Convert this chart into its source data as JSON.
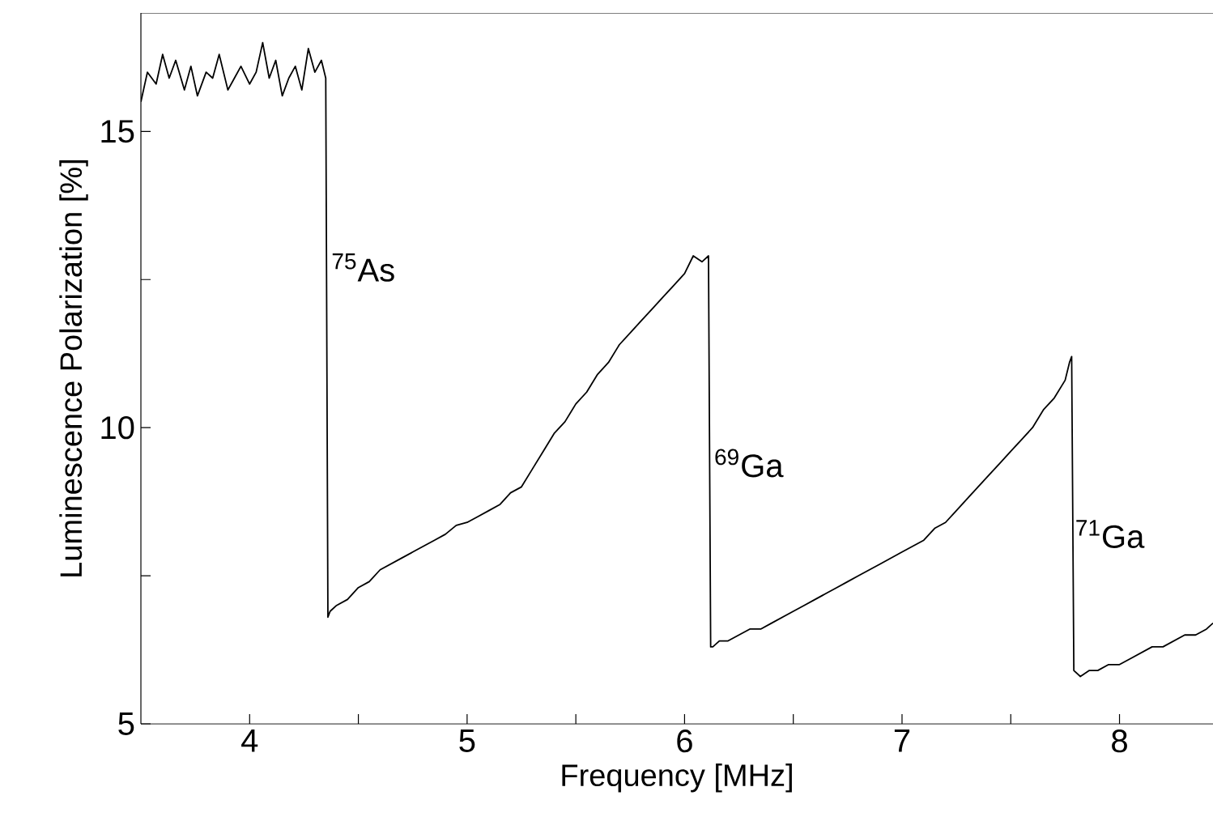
{
  "chart_data": {
    "type": "line",
    "xlabel": "Frequency [MHz]",
    "ylabel": "Luminescence Polarization [%]",
    "xlim": [
      3.5,
      8.43
    ],
    "ylim": [
      5,
      17
    ],
    "xticks": [
      4,
      {
        "value": 4.5,
        "label": null
      },
      5,
      {
        "value": 5.5,
        "label": null
      },
      6,
      {
        "value": 6.5,
        "label": null
      },
      7,
      {
        "value": 7.5,
        "label": null
      },
      8
    ],
    "yticks": [
      5,
      {
        "value": 7.5,
        "label": null
      },
      10,
      {
        "value": 12.5,
        "label": null
      },
      15
    ],
    "marker": "none",
    "line_style": "solid",
    "series": [
      {
        "color": "#000000",
        "x": [
          3.5,
          3.53,
          3.57,
          3.6,
          3.63,
          3.66,
          3.7,
          3.73,
          3.76,
          3.8,
          3.83,
          3.86,
          3.9,
          3.93,
          3.96,
          4.0,
          4.03,
          4.06,
          4.09,
          4.12,
          4.15,
          4.18,
          4.21,
          4.24,
          4.27,
          4.3,
          4.33,
          4.35,
          4.36,
          4.37,
          4.4,
          4.45,
          4.5,
          4.55,
          4.6,
          4.65,
          4.7,
          4.75,
          4.8,
          4.85,
          4.9,
          4.95,
          5.0,
          5.05,
          5.1,
          5.15,
          5.2,
          5.25,
          5.3,
          5.35,
          5.4,
          5.45,
          5.5,
          5.55,
          5.6,
          5.65,
          5.7,
          5.75,
          5.8,
          5.85,
          5.9,
          5.95,
          6.0,
          6.04,
          6.08,
          6.11,
          6.12,
          6.13,
          6.16,
          6.2,
          6.25,
          6.3,
          6.35,
          6.4,
          6.45,
          6.5,
          6.55,
          6.6,
          6.65,
          6.7,
          6.75,
          6.8,
          6.85,
          6.9,
          6.95,
          7.0,
          7.05,
          7.1,
          7.15,
          7.2,
          7.25,
          7.3,
          7.35,
          7.4,
          7.45,
          7.5,
          7.55,
          7.6,
          7.65,
          7.7,
          7.75,
          7.77,
          7.78,
          7.79,
          7.82,
          7.86,
          7.9,
          7.95,
          8.0,
          8.05,
          8.1,
          8.15,
          8.2,
          8.25,
          8.3,
          8.35,
          8.4,
          8.43
        ],
        "values": [
          15.5,
          16.0,
          15.8,
          16.3,
          15.9,
          16.2,
          15.7,
          16.1,
          15.6,
          16.0,
          15.9,
          16.3,
          15.7,
          15.9,
          16.1,
          15.8,
          16.0,
          16.5,
          15.9,
          16.2,
          15.6,
          15.9,
          16.1,
          15.7,
          16.4,
          16.0,
          16.2,
          15.9,
          6.8,
          6.9,
          7.0,
          7.1,
          7.3,
          7.4,
          7.6,
          7.7,
          7.8,
          7.9,
          8.0,
          8.1,
          8.2,
          8.35,
          8.4,
          8.5,
          8.6,
          8.7,
          8.9,
          9.0,
          9.3,
          9.6,
          9.9,
          10.1,
          10.4,
          10.6,
          10.9,
          11.1,
          11.4,
          11.6,
          11.8,
          12.0,
          12.2,
          12.4,
          12.6,
          12.9,
          12.8,
          12.9,
          6.3,
          6.3,
          6.4,
          6.4,
          6.5,
          6.6,
          6.6,
          6.7,
          6.8,
          6.9,
          7.0,
          7.1,
          7.2,
          7.3,
          7.4,
          7.5,
          7.6,
          7.7,
          7.8,
          7.9,
          8.0,
          8.1,
          8.3,
          8.4,
          8.6,
          8.8,
          9.0,
          9.2,
          9.4,
          9.6,
          9.8,
          10.0,
          10.3,
          10.5,
          10.8,
          11.1,
          11.2,
          5.9,
          5.8,
          5.9,
          5.9,
          6.0,
          6.0,
          6.1,
          6.2,
          6.3,
          6.3,
          6.4,
          6.5,
          6.5,
          6.6,
          6.7
        ]
      }
    ],
    "annotations": [
      {
        "text": "$^{75}$As",
        "x": 4.36,
        "y": 13.0
      },
      {
        "text": "$^{69}$Ga",
        "x": 6.12,
        "y": 9.7
      },
      {
        "text": "$^{71}$Ga",
        "x": 7.78,
        "y": 8.5
      }
    ]
  }
}
